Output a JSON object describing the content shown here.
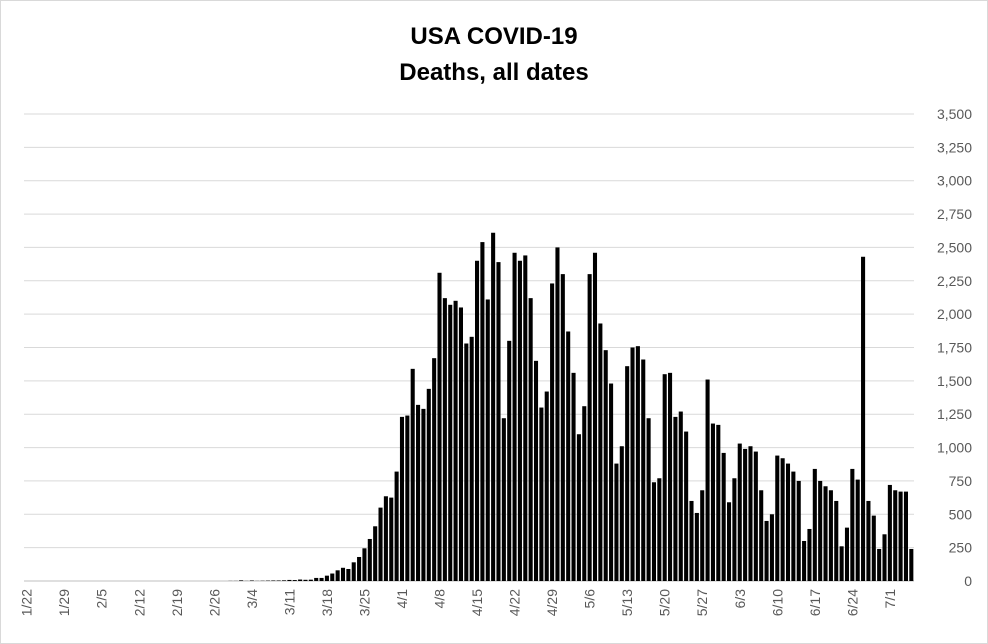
{
  "chart_data": {
    "type": "bar",
    "title": "USA COVID-19",
    "subtitle": "Deaths, all dates",
    "categories": [
      "1/22",
      null,
      null,
      null,
      null,
      null,
      null,
      "1/29",
      null,
      null,
      null,
      null,
      null,
      null,
      "2/5",
      null,
      null,
      null,
      null,
      null,
      null,
      "2/12",
      null,
      null,
      null,
      null,
      null,
      null,
      "2/19",
      null,
      null,
      null,
      null,
      null,
      null,
      "2/26",
      null,
      null,
      null,
      null,
      null,
      null,
      "3/4",
      null,
      null,
      null,
      null,
      null,
      null,
      "3/11",
      null,
      null,
      null,
      null,
      null,
      null,
      "3/18",
      null,
      null,
      null,
      null,
      null,
      null,
      "3/25",
      null,
      null,
      null,
      null,
      null,
      null,
      "4/1",
      null,
      null,
      null,
      null,
      null,
      null,
      "4/8",
      null,
      null,
      null,
      null,
      null,
      null,
      "4/15",
      null,
      null,
      null,
      null,
      null,
      null,
      "4/22",
      null,
      null,
      null,
      null,
      null,
      null,
      "4/29",
      null,
      null,
      null,
      null,
      null,
      null,
      "5/6",
      null,
      null,
      null,
      null,
      null,
      null,
      "5/13",
      null,
      null,
      null,
      null,
      null,
      null,
      "5/20",
      null,
      null,
      null,
      null,
      null,
      null,
      "5/27",
      null,
      null,
      null,
      null,
      null,
      null,
      "6/3",
      null,
      null,
      null,
      null,
      null,
      null,
      "6/10",
      null,
      null,
      null,
      null,
      null,
      null,
      "6/17",
      null,
      null,
      null,
      null,
      null,
      null,
      "6/24",
      null,
      null,
      null,
      null,
      null,
      null,
      "7/1",
      null,
      null,
      null,
      null
    ],
    "values": [
      0,
      0,
      0,
      0,
      0,
      0,
      0,
      0,
      0,
      0,
      0,
      0,
      0,
      0,
      0,
      0,
      0,
      0,
      0,
      0,
      0,
      0,
      0,
      0,
      0,
      0,
      0,
      0,
      0,
      0,
      0,
      0,
      0,
      0,
      0,
      0,
      0,
      0,
      1,
      1,
      5,
      1,
      4,
      1,
      2,
      3,
      4,
      4,
      5,
      8,
      7,
      11,
      9,
      10,
      23,
      23,
      40,
      56,
      80,
      99,
      90,
      140,
      180,
      245,
      315,
      410,
      550,
      635,
      625,
      820,
      1230,
      1240,
      1590,
      1320,
      1290,
      1440,
      1670,
      2310,
      2120,
      2070,
      2100,
      2050,
      1780,
      1830,
      2400,
      2540,
      2110,
      2610,
      2390,
      1220,
      1800,
      2460,
      2400,
      2440,
      2120,
      1650,
      1300,
      1420,
      2230,
      2500,
      2300,
      1870,
      1560,
      1100,
      1310,
      2300,
      2460,
      1930,
      1730,
      1480,
      880,
      1010,
      1610,
      1750,
      1760,
      1660,
      1220,
      740,
      770,
      1550,
      1560,
      1230,
      1270,
      1120,
      600,
      510,
      680,
      1510,
      1180,
      1170,
      960,
      590,
      770,
      1030,
      990,
      1010,
      970,
      680,
      450,
      500,
      940,
      920,
      880,
      820,
      750,
      300,
      390,
      840,
      750,
      710,
      680,
      600,
      260,
      400,
      840,
      760,
      2430,
      600,
      490,
      240,
      350,
      720,
      680,
      670,
      670,
      240
    ],
    "color": "#000000",
    "ylim": [
      0,
      3500
    ],
    "yticks": [
      0,
      250,
      500,
      750,
      {
        "value": 1000,
        "label": "1,000"
      },
      {
        "value": 1250,
        "label": "1,250"
      },
      {
        "value": 1500,
        "label": "1,500"
      },
      {
        "value": 1750,
        "label": "1,750"
      },
      {
        "value": 2000,
        "label": "2,000"
      },
      {
        "value": 2250,
        "label": "2,250"
      },
      {
        "value": 2500,
        "label": "2,500"
      },
      {
        "value": 2750,
        "label": "2,750"
      },
      {
        "value": 3000,
        "label": "3,000"
      },
      {
        "value": 3250,
        "label": "3,250"
      },
      {
        "value": 3500,
        "label": "3,500"
      }
    ],
    "grid": true
  }
}
